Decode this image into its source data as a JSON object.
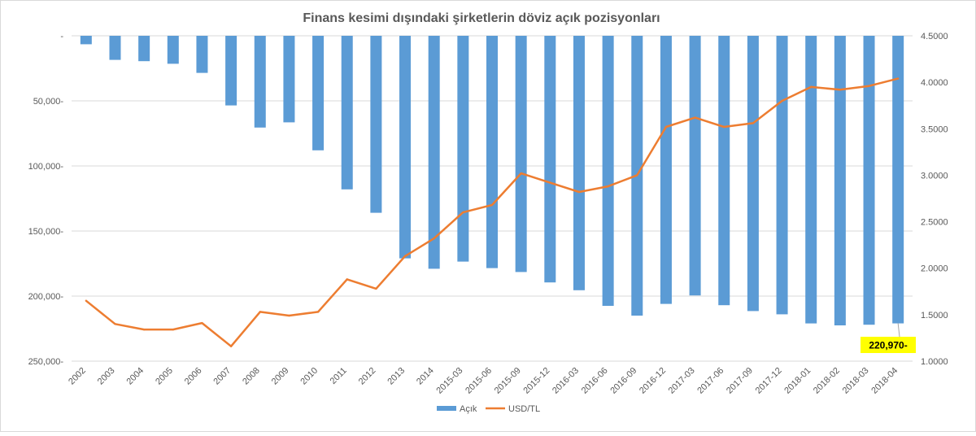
{
  "chart_data": {
    "type": "bar+line",
    "title": "Finans kesimi dışındaki şirketlerin döviz açık pozisyonları",
    "categories": [
      "2002",
      "2003",
      "2004",
      "2005",
      "2006",
      "2007",
      "2008",
      "2009",
      "2010",
      "2011",
      "2012",
      "2013",
      "2014",
      "2015-03",
      "2015-06",
      "2015-09",
      "2015-12",
      "2016-03",
      "2016-06",
      "2016-09",
      "2016-12",
      "2017-03",
      "2017-06",
      "2017-09",
      "2017-12",
      "2018-01",
      "2018-02",
      "2018-03",
      "2018-04"
    ],
    "left_axis": {
      "ylim": [
        0,
        250000
      ],
      "ticks": [
        0,
        50000,
        100000,
        150000,
        200000,
        250000
      ],
      "tick_labels": [
        "-",
        "50,000-",
        "100,000-",
        "150,000-",
        "200,000-",
        "250,000-"
      ],
      "inverted": true
    },
    "right_axis": {
      "ylim": [
        1.0,
        4.5
      ],
      "ticks": [
        1.0,
        1.5,
        2.0,
        2.5,
        3.0,
        3.5,
        4.0,
        4.5
      ],
      "tick_labels": [
        "1.0000",
        "1.5000",
        "2.0000",
        "2.5000",
        "3.0000",
        "3.5000",
        "4.0000",
        "4.5000"
      ]
    },
    "series": [
      {
        "name": "Açık",
        "type": "bar",
        "axis": "left",
        "color": "#5b9bd5",
        "values": [
          6500,
          18500,
          19500,
          21500,
          28500,
          53500,
          70500,
          66500,
          88000,
          118000,
          136000,
          171000,
          179000,
          173500,
          178500,
          181500,
          189500,
          195500,
          207500,
          215000,
          206000,
          199500,
          207000,
          211500,
          214000,
          221000,
          222500,
          222000,
          220970
        ]
      },
      {
        "name": "USD/TL",
        "type": "line",
        "axis": "right",
        "color": "#ed7d31",
        "values": [
          1.65,
          1.4,
          1.34,
          1.34,
          1.41,
          1.16,
          1.53,
          1.49,
          1.53,
          1.88,
          1.78,
          2.13,
          2.32,
          2.6,
          2.68,
          3.02,
          2.92,
          2.82,
          2.88,
          3.0,
          3.52,
          3.62,
          3.52,
          3.56,
          3.8,
          3.95,
          3.92,
          3.96,
          4.04
        ]
      }
    ],
    "annotation": {
      "category": "2018-04",
      "text": "220,970-",
      "background": "#ffff00"
    },
    "legend": {
      "position": "bottom"
    },
    "grid": true
  }
}
